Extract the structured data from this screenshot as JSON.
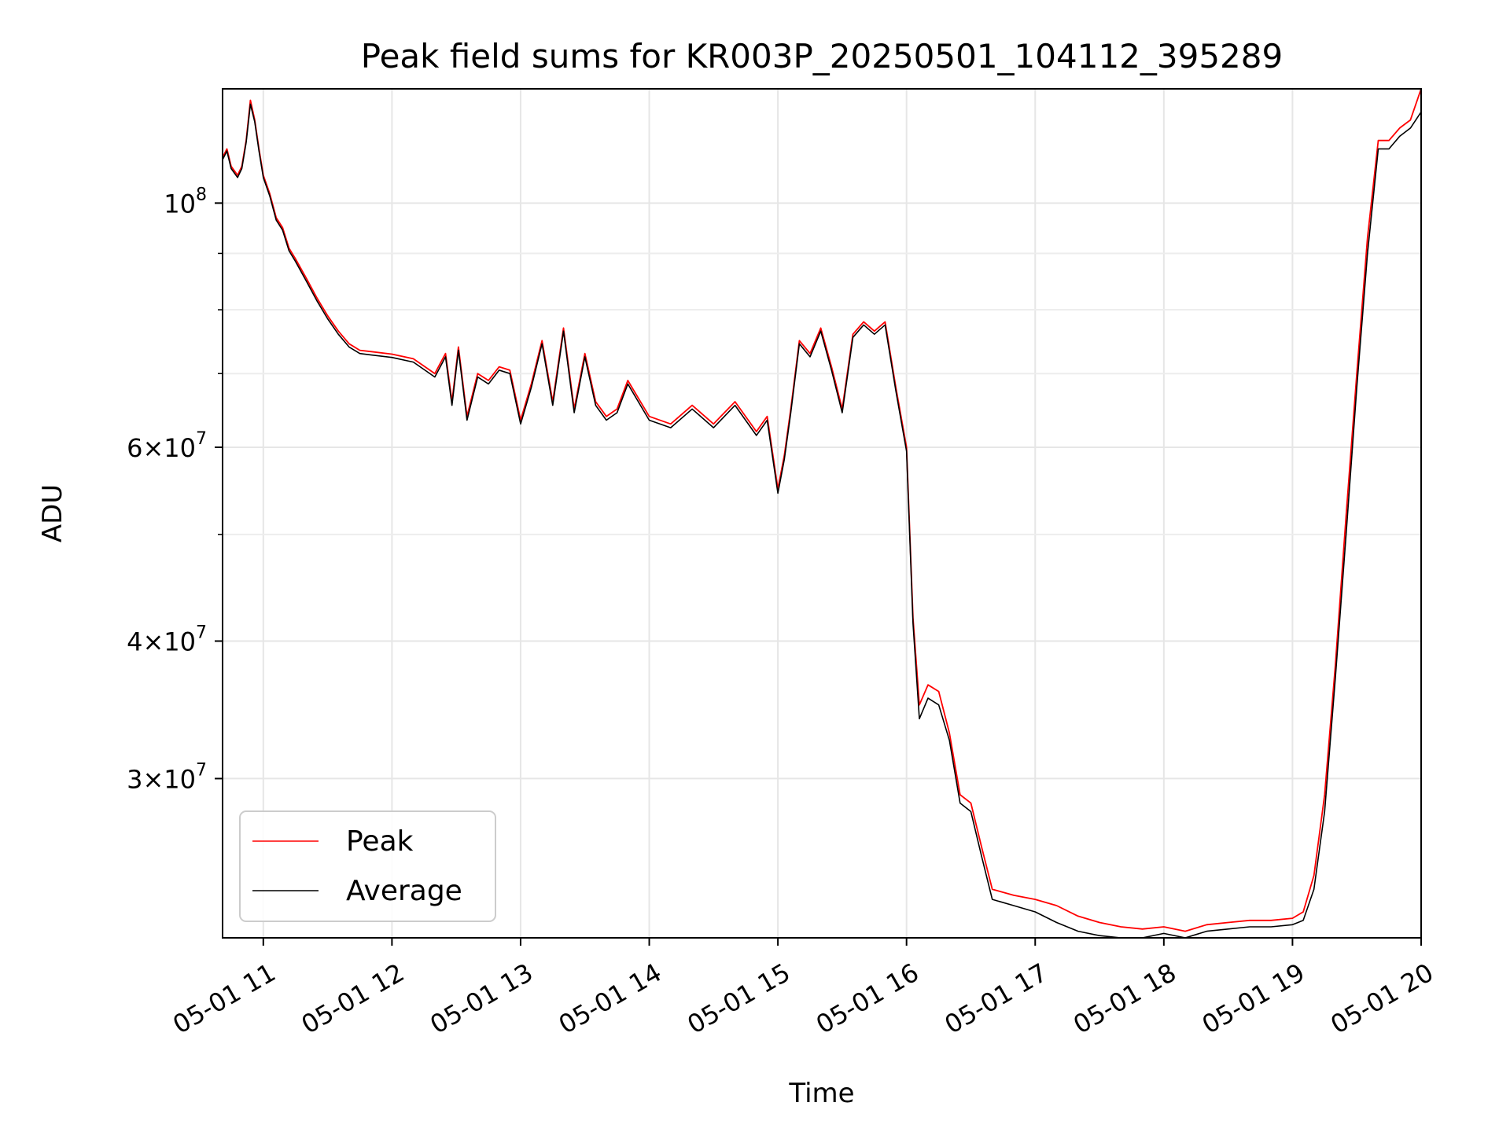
{
  "chart_data": {
    "type": "line",
    "title": "Peak field sums for KR003P_20250501_104112_395289",
    "xlabel": "Time",
    "ylabel": "ADU",
    "yscale": "log",
    "xlim": [
      "2025-05-01T10:41",
      "2025-05-01T20:00"
    ],
    "ylim": [
      21500000,
      127000000
    ],
    "grid": true,
    "legend_position": "lower-left",
    "x_ticks": [
      {
        "value": "2025-05-01T11:00",
        "label": "05-01 11"
      },
      {
        "value": "2025-05-01T12:00",
        "label": "05-01 12"
      },
      {
        "value": "2025-05-01T13:00",
        "label": "05-01 13"
      },
      {
        "value": "2025-05-01T14:00",
        "label": "05-01 14"
      },
      {
        "value": "2025-05-01T15:00",
        "label": "05-01 15"
      },
      {
        "value": "2025-05-01T16:00",
        "label": "05-01 16"
      },
      {
        "value": "2025-05-01T17:00",
        "label": "05-01 17"
      },
      {
        "value": "2025-05-01T18:00",
        "label": "05-01 18"
      },
      {
        "value": "2025-05-01T19:00",
        "label": "05-01 19"
      },
      {
        "value": "2025-05-01T20:00",
        "label": "05-01 20"
      }
    ],
    "y_ticks": [
      {
        "value": 100000000,
        "mantissa": "",
        "exponent": "8"
      },
      {
        "value": 60000000,
        "mantissa": "6",
        "exponent": "7"
      },
      {
        "value": 40000000,
        "mantissa": "4",
        "exponent": "7"
      },
      {
        "value": 30000000,
        "mantissa": "3",
        "exponent": "7"
      }
    ],
    "y_minor_ticks": [
      90000000,
      80000000,
      70000000,
      50000000
    ],
    "series": [
      {
        "name": "Peak",
        "color": "#ff0000",
        "x": [
          "2025-05-01T10:41",
          "2025-05-01T10:43",
          "2025-05-01T10:45",
          "2025-05-01T10:48",
          "2025-05-01T10:50",
          "2025-05-01T10:52",
          "2025-05-01T10:54",
          "2025-05-01T10:56",
          "2025-05-01T10:58",
          "2025-05-01T11:00",
          "2025-05-01T11:03",
          "2025-05-01T11:06",
          "2025-05-01T11:09",
          "2025-05-01T11:12",
          "2025-05-01T11:15",
          "2025-05-01T11:20",
          "2025-05-01T11:25",
          "2025-05-01T11:30",
          "2025-05-01T11:35",
          "2025-05-01T11:40",
          "2025-05-01T11:45",
          "2025-05-01T11:50",
          "2025-05-01T12:00",
          "2025-05-01T12:10",
          "2025-05-01T12:20",
          "2025-05-01T12:25",
          "2025-05-01T12:28",
          "2025-05-01T12:31",
          "2025-05-01T12:35",
          "2025-05-01T12:40",
          "2025-05-01T12:45",
          "2025-05-01T12:50",
          "2025-05-01T12:55",
          "2025-05-01T13:00",
          "2025-05-01T13:05",
          "2025-05-01T13:10",
          "2025-05-01T13:15",
          "2025-05-01T13:20",
          "2025-05-01T13:25",
          "2025-05-01T13:30",
          "2025-05-01T13:35",
          "2025-05-01T13:40",
          "2025-05-01T13:45",
          "2025-05-01T13:50",
          "2025-05-01T14:00",
          "2025-05-01T14:10",
          "2025-05-01T14:20",
          "2025-05-01T14:30",
          "2025-05-01T14:40",
          "2025-05-01T14:50",
          "2025-05-01T14:55",
          "2025-05-01T15:00",
          "2025-05-01T15:03",
          "2025-05-01T15:06",
          "2025-05-01T15:10",
          "2025-05-01T15:15",
          "2025-05-01T15:20",
          "2025-05-01T15:25",
          "2025-05-01T15:30",
          "2025-05-01T15:35",
          "2025-05-01T15:40",
          "2025-05-01T15:45",
          "2025-05-01T15:50",
          "2025-05-01T15:55",
          "2025-05-01T16:00",
          "2025-05-01T16:03",
          "2025-05-01T16:06",
          "2025-05-01T16:10",
          "2025-05-01T16:15",
          "2025-05-01T16:20",
          "2025-05-01T16:25",
          "2025-05-01T16:30",
          "2025-05-01T16:35",
          "2025-05-01T16:40",
          "2025-05-01T16:50",
          "2025-05-01T17:00",
          "2025-05-01T17:10",
          "2025-05-01T17:20",
          "2025-05-01T17:30",
          "2025-05-01T17:40",
          "2025-05-01T17:50",
          "2025-05-01T18:00",
          "2025-05-01T18:10",
          "2025-05-01T18:20",
          "2025-05-01T18:30",
          "2025-05-01T18:40",
          "2025-05-01T18:50",
          "2025-05-01T19:00",
          "2025-05-01T19:05",
          "2025-05-01T19:10",
          "2025-05-01T19:15",
          "2025-05-01T19:20",
          "2025-05-01T19:25",
          "2025-05-01T19:30",
          "2025-05-01T19:35",
          "2025-05-01T19:40",
          "2025-05-01T19:45",
          "2025-05-01T19:50",
          "2025-05-01T19:55",
          "2025-05-01T20:00"
        ],
        "values": [
          110000000,
          112000000,
          108000000,
          106000000,
          108000000,
          114000000,
          124000000,
          119000000,
          112000000,
          106000000,
          102000000,
          97000000,
          95000000,
          91000000,
          89000000,
          85500000,
          82000000,
          79000000,
          76500000,
          74500000,
          73500000,
          73300000,
          72900000,
          72200000,
          70000000,
          73000000,
          66000000,
          74000000,
          64000000,
          70000000,
          69000000,
          71000000,
          70500000,
          63500000,
          68500000,
          75000000,
          66000000,
          77000000,
          65000000,
          73000000,
          66000000,
          64000000,
          65000000,
          69000000,
          64000000,
          63000000,
          65500000,
          63000000,
          66000000,
          62000000,
          64000000,
          55000000,
          59000000,
          65000000,
          75000000,
          73000000,
          77000000,
          71000000,
          65000000,
          76000000,
          78000000,
          76500000,
          78000000,
          68000000,
          60000000,
          42000000,
          35000000,
          36500000,
          36000000,
          33000000,
          29000000,
          28500000,
          26000000,
          23800000,
          23500000,
          23300000,
          23000000,
          22500000,
          22200000,
          22000000,
          21900000,
          22000000,
          21800000,
          22100000,
          22200000,
          22300000,
          22300000,
          22400000,
          22700000,
          24500000,
          29000000,
          38000000,
          52000000,
          70000000,
          93000000,
          114000000,
          114000000,
          117000000,
          119000000,
          127000000
        ]
      },
      {
        "name": "Average",
        "color": "#000000",
        "x": [
          "2025-05-01T10:41",
          "2025-05-01T10:43",
          "2025-05-01T10:45",
          "2025-05-01T10:48",
          "2025-05-01T10:50",
          "2025-05-01T10:52",
          "2025-05-01T10:54",
          "2025-05-01T10:56",
          "2025-05-01T10:58",
          "2025-05-01T11:00",
          "2025-05-01T11:03",
          "2025-05-01T11:06",
          "2025-05-01T11:09",
          "2025-05-01T11:12",
          "2025-05-01T11:15",
          "2025-05-01T11:20",
          "2025-05-01T11:25",
          "2025-05-01T11:30",
          "2025-05-01T11:35",
          "2025-05-01T11:40",
          "2025-05-01T11:45",
          "2025-05-01T11:50",
          "2025-05-01T12:00",
          "2025-05-01T12:10",
          "2025-05-01T12:20",
          "2025-05-01T12:25",
          "2025-05-01T12:28",
          "2025-05-01T12:31",
          "2025-05-01T12:35",
          "2025-05-01T12:40",
          "2025-05-01T12:45",
          "2025-05-01T12:50",
          "2025-05-01T12:55",
          "2025-05-01T13:00",
          "2025-05-01T13:05",
          "2025-05-01T13:10",
          "2025-05-01T13:15",
          "2025-05-01T13:20",
          "2025-05-01T13:25",
          "2025-05-01T13:30",
          "2025-05-01T13:35",
          "2025-05-01T13:40",
          "2025-05-01T13:45",
          "2025-05-01T13:50",
          "2025-05-01T14:00",
          "2025-05-01T14:10",
          "2025-05-01T14:20",
          "2025-05-01T14:30",
          "2025-05-01T14:40",
          "2025-05-01T14:50",
          "2025-05-01T14:55",
          "2025-05-01T15:00",
          "2025-05-01T15:03",
          "2025-05-01T15:06",
          "2025-05-01T15:10",
          "2025-05-01T15:15",
          "2025-05-01T15:20",
          "2025-05-01T15:25",
          "2025-05-01T15:30",
          "2025-05-01T15:35",
          "2025-05-01T15:40",
          "2025-05-01T15:45",
          "2025-05-01T15:50",
          "2025-05-01T15:55",
          "2025-05-01T16:00",
          "2025-05-01T16:03",
          "2025-05-01T16:06",
          "2025-05-01T16:10",
          "2025-05-01T16:15",
          "2025-05-01T16:20",
          "2025-05-01T16:25",
          "2025-05-01T16:30",
          "2025-05-01T16:35",
          "2025-05-01T16:40",
          "2025-05-01T16:50",
          "2025-05-01T17:00",
          "2025-05-01T17:10",
          "2025-05-01T17:20",
          "2025-05-01T17:30",
          "2025-05-01T17:40",
          "2025-05-01T17:50",
          "2025-05-01T18:00",
          "2025-05-01T18:10",
          "2025-05-01T18:20",
          "2025-05-01T18:30",
          "2025-05-01T18:40",
          "2025-05-01T18:50",
          "2025-05-01T19:00",
          "2025-05-01T19:05",
          "2025-05-01T19:10",
          "2025-05-01T19:15",
          "2025-05-01T19:20",
          "2025-05-01T19:25",
          "2025-05-01T19:30",
          "2025-05-01T19:35",
          "2025-05-01T19:40",
          "2025-05-01T19:45",
          "2025-05-01T19:50",
          "2025-05-01T19:55",
          "2025-05-01T20:00"
        ],
        "values": [
          109500000,
          111500000,
          107500000,
          105500000,
          107500000,
          113500000,
          123000000,
          118500000,
          111500000,
          105500000,
          101500000,
          96500000,
          94500000,
          90500000,
          88500000,
          85000000,
          81500000,
          78500000,
          76000000,
          74000000,
          73000000,
          72800000,
          72400000,
          71700000,
          69500000,
          72500000,
          65500000,
          73500000,
          63500000,
          69500000,
          68500000,
          70500000,
          70000000,
          63000000,
          68000000,
          74500000,
          65500000,
          76500000,
          64500000,
          72500000,
          65500000,
          63500000,
          64500000,
          68500000,
          63500000,
          62500000,
          65000000,
          62500000,
          65500000,
          61500000,
          63500000,
          54500000,
          58500000,
          64500000,
          74500000,
          72500000,
          76500000,
          70500000,
          64500000,
          75500000,
          77500000,
          76000000,
          77500000,
          67500000,
          59500000,
          41500000,
          34000000,
          35500000,
          35000000,
          32500000,
          28500000,
          28000000,
          25500000,
          23300000,
          23000000,
          22700000,
          22200000,
          21800000,
          21600000,
          21500000,
          21500000,
          21700000,
          21500000,
          21800000,
          21900000,
          22000000,
          22000000,
          22100000,
          22300000,
          23800000,
          28000000,
          37000000,
          50000000,
          68000000,
          90000000,
          112000000,
          112000000,
          115000000,
          117000000,
          121000000
        ]
      }
    ]
  }
}
